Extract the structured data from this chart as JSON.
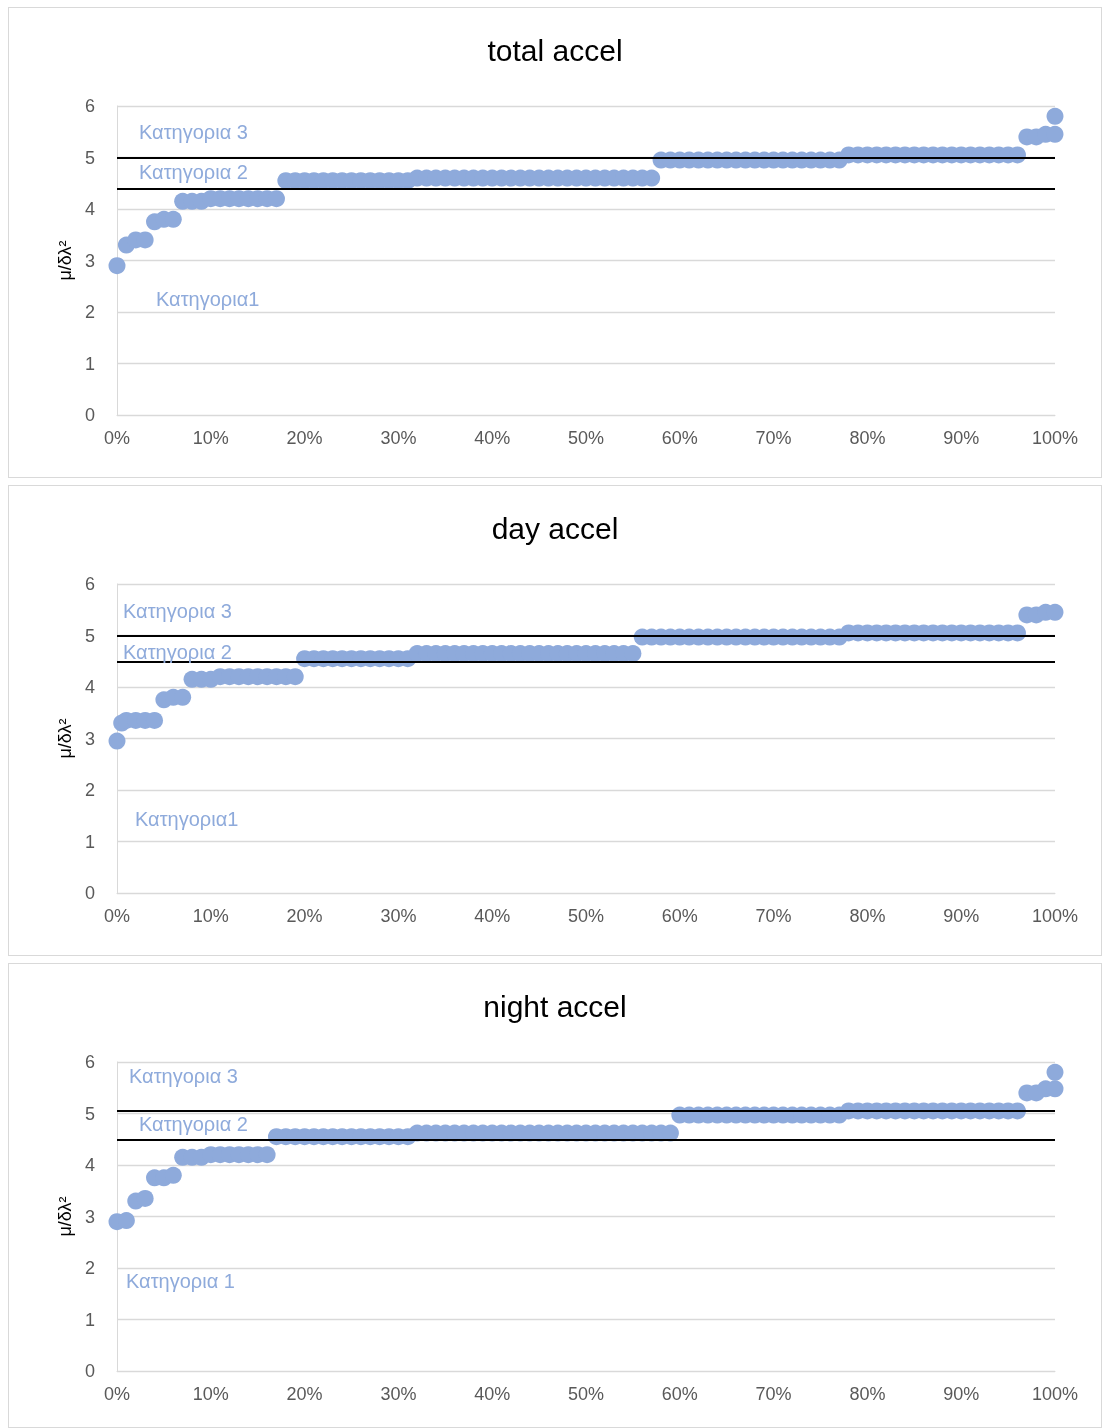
{
  "chart_data": [
    {
      "type": "scatter",
      "title": "total accel",
      "ylabel": "μ/δλ²",
      "marker": "circle",
      "grid": "y",
      "xlim": [
        0,
        100
      ],
      "xticks": [
        {
          "value": 0,
          "label": "0%"
        },
        {
          "value": 10,
          "label": "10%"
        },
        {
          "value": 20,
          "label": "20%"
        },
        {
          "value": 30,
          "label": "30%"
        },
        {
          "value": 40,
          "label": "40%"
        },
        {
          "value": 50,
          "label": "50%"
        },
        {
          "value": 60,
          "label": "60%"
        },
        {
          "value": 70,
          "label": "70%"
        },
        {
          "value": 80,
          "label": "80%"
        },
        {
          "value": 90,
          "label": "90%"
        },
        {
          "value": 100,
          "label": "100%"
        }
      ],
      "ylim": [
        0,
        6
      ],
      "yticks": [
        0,
        1,
        2,
        3,
        4,
        5,
        6
      ],
      "series": [
        {
          "color": "#8eaadb",
          "x": [
            0,
            1,
            2,
            3,
            4,
            5,
            6,
            7,
            8,
            9,
            10,
            11,
            12,
            13,
            14,
            15,
            16,
            17,
            18,
            19,
            20,
            21,
            22,
            23,
            24,
            25,
            26,
            27,
            28,
            29,
            30,
            31,
            32,
            33,
            34,
            35,
            36,
            37,
            38,
            39,
            40,
            41,
            42,
            43,
            44,
            45,
            46,
            47,
            48,
            49,
            50,
            51,
            52,
            53,
            54,
            55,
            56,
            57,
            58,
            59,
            60,
            61,
            62,
            63,
            64,
            65,
            66,
            67,
            68,
            69,
            70,
            71,
            72,
            73,
            74,
            75,
            76,
            77,
            78,
            79,
            80,
            81,
            82,
            83,
            84,
            85,
            86,
            87,
            88,
            89,
            90,
            91,
            92,
            93,
            94,
            95,
            96,
            97,
            98,
            99,
            100,
            100
          ],
          "values": [
            2.9,
            3.3,
            3.4,
            3.4,
            3.75,
            3.8,
            3.8,
            4.15,
            4.15,
            4.15,
            4.2,
            4.2,
            4.2,
            4.2,
            4.2,
            4.2,
            4.2,
            4.2,
            4.55,
            4.55,
            4.55,
            4.55,
            4.55,
            4.55,
            4.55,
            4.55,
            4.55,
            4.55,
            4.55,
            4.55,
            4.55,
            4.55,
            4.6,
            4.6,
            4.6,
            4.6,
            4.6,
            4.6,
            4.6,
            4.6,
            4.6,
            4.6,
            4.6,
            4.6,
            4.6,
            4.6,
            4.6,
            4.6,
            4.6,
            4.6,
            4.6,
            4.6,
            4.6,
            4.6,
            4.6,
            4.6,
            4.6,
            4.6,
            4.95,
            4.95,
            4.95,
            4.95,
            4.95,
            4.95,
            4.95,
            4.95,
            4.95,
            4.95,
            4.95,
            4.95,
            4.95,
            4.95,
            4.95,
            4.95,
            4.95,
            4.95,
            4.95,
            4.95,
            5.05,
            5.05,
            5.05,
            5.05,
            5.05,
            5.05,
            5.05,
            5.05,
            5.05,
            5.05,
            5.05,
            5.05,
            5.05,
            5.05,
            5.05,
            5.05,
            5.05,
            5.05,
            5.05,
            5.4,
            5.4,
            5.45,
            5.45,
            5.8
          ]
        }
      ],
      "ref_lines": [
        {
          "axis": "y",
          "value": 5.0,
          "color": "#000000"
        },
        {
          "axis": "y",
          "value": 4.4,
          "color": "#000000"
        }
      ],
      "annotations": [
        "Κατηγορια 3",
        "Κατηγορια 2",
        "Κατηγορια1"
      ]
    },
    {
      "type": "scatter",
      "title": "day accel",
      "ylabel": "μ/δλ²",
      "marker": "circle",
      "grid": "y",
      "xlim": [
        0,
        100
      ],
      "xticks": [
        {
          "value": 0,
          "label": "0%"
        },
        {
          "value": 10,
          "label": "10%"
        },
        {
          "value": 20,
          "label": "20%"
        },
        {
          "value": 30,
          "label": "30%"
        },
        {
          "value": 40,
          "label": "40%"
        },
        {
          "value": 50,
          "label": "50%"
        },
        {
          "value": 60,
          "label": "60%"
        },
        {
          "value": 70,
          "label": "70%"
        },
        {
          "value": 80,
          "label": "80%"
        },
        {
          "value": 90,
          "label": "90%"
        },
        {
          "value": 100,
          "label": "100%"
        }
      ],
      "ylim": [
        0,
        6
      ],
      "yticks": [
        0,
        1,
        2,
        3,
        4,
        5,
        6
      ],
      "series": [
        {
          "color": "#8eaadb",
          "x": [
            0,
            0.5,
            1,
            2,
            3,
            4,
            5,
            6,
            7,
            8,
            9,
            10,
            11,
            12,
            13,
            14,
            15,
            16,
            17,
            18,
            19,
            20,
            21,
            22,
            23,
            24,
            25,
            26,
            27,
            28,
            29,
            30,
            31,
            32,
            33,
            34,
            35,
            36,
            37,
            38,
            39,
            40,
            41,
            42,
            43,
            44,
            45,
            46,
            47,
            48,
            49,
            50,
            51,
            52,
            53,
            54,
            55,
            56,
            57,
            58,
            59,
            60,
            61,
            62,
            63,
            64,
            65,
            66,
            67,
            68,
            69,
            70,
            71,
            72,
            73,
            74,
            75,
            76,
            77,
            78,
            79,
            80,
            81,
            82,
            83,
            84,
            85,
            86,
            87,
            88,
            89,
            90,
            91,
            92,
            93,
            94,
            95,
            96,
            97,
            98,
            99,
            100
          ],
          "values": [
            2.95,
            3.3,
            3.35,
            3.35,
            3.35,
            3.35,
            3.75,
            3.8,
            3.8,
            4.15,
            4.15,
            4.15,
            4.2,
            4.2,
            4.2,
            4.2,
            4.2,
            4.2,
            4.2,
            4.2,
            4.2,
            4.55,
            4.55,
            4.55,
            4.55,
            4.55,
            4.55,
            4.55,
            4.55,
            4.55,
            4.55,
            4.55,
            4.55,
            4.65,
            4.65,
            4.65,
            4.65,
            4.65,
            4.65,
            4.65,
            4.65,
            4.65,
            4.65,
            4.65,
            4.65,
            4.65,
            4.65,
            4.65,
            4.65,
            4.65,
            4.65,
            4.65,
            4.65,
            4.65,
            4.65,
            4.65,
            4.65,
            4.97,
            4.97,
            4.97,
            4.97,
            4.97,
            4.97,
            4.97,
            4.97,
            4.97,
            4.97,
            4.97,
            4.97,
            4.97,
            4.97,
            4.97,
            4.97,
            4.97,
            4.97,
            4.97,
            4.97,
            4.97,
            4.97,
            5.05,
            5.05,
            5.05,
            5.05,
            5.05,
            5.05,
            5.05,
            5.05,
            5.05,
            5.05,
            5.05,
            5.05,
            5.05,
            5.05,
            5.05,
            5.05,
            5.05,
            5.05,
            5.05,
            5.4,
            5.4,
            5.45,
            5.45
          ]
        }
      ],
      "ref_lines": [
        {
          "axis": "y",
          "value": 5.0,
          "color": "#000000"
        },
        {
          "axis": "y",
          "value": 4.5,
          "color": "#000000"
        }
      ],
      "annotations": [
        "Κατηγορια 3",
        "Κατηγορια 2",
        "Κατηγορια1"
      ]
    },
    {
      "type": "scatter",
      "title": "night accel",
      "ylabel": "μ/δλ²",
      "marker": "circle",
      "grid": "y",
      "xlim": [
        0,
        100
      ],
      "xticks": [
        {
          "value": 0,
          "label": "0%"
        },
        {
          "value": 10,
          "label": "10%"
        },
        {
          "value": 20,
          "label": "20%"
        },
        {
          "value": 30,
          "label": "30%"
        },
        {
          "value": 40,
          "label": "40%"
        },
        {
          "value": 50,
          "label": "50%"
        },
        {
          "value": 60,
          "label": "60%"
        },
        {
          "value": 70,
          "label": "70%"
        },
        {
          "value": 80,
          "label": "80%"
        },
        {
          "value": 90,
          "label": "90%"
        },
        {
          "value": 100,
          "label": "100%"
        }
      ],
      "ylim": [
        0,
        6
      ],
      "yticks": [
        0,
        1,
        2,
        3,
        4,
        5,
        6
      ],
      "series": [
        {
          "color": "#8eaadb",
          "x": [
            0,
            1,
            2,
            3,
            4,
            5,
            6,
            7,
            8,
            9,
            10,
            11,
            12,
            13,
            14,
            15,
            16,
            17,
            18,
            19,
            20,
            21,
            22,
            23,
            24,
            25,
            26,
            27,
            28,
            29,
            30,
            31,
            32,
            33,
            34,
            35,
            36,
            37,
            38,
            39,
            40,
            41,
            42,
            43,
            44,
            45,
            46,
            47,
            48,
            49,
            50,
            51,
            52,
            53,
            54,
            55,
            56,
            57,
            58,
            59,
            60,
            61,
            62,
            63,
            64,
            65,
            66,
            67,
            68,
            69,
            70,
            71,
            72,
            73,
            74,
            75,
            76,
            77,
            78,
            79,
            80,
            81,
            82,
            83,
            84,
            85,
            86,
            87,
            88,
            89,
            90,
            91,
            92,
            93,
            94,
            95,
            96,
            97,
            98,
            99,
            100,
            100
          ],
          "values": [
            2.9,
            2.92,
            3.3,
            3.35,
            3.75,
            3.75,
            3.8,
            4.15,
            4.15,
            4.15,
            4.2,
            4.2,
            4.2,
            4.2,
            4.2,
            4.2,
            4.2,
            4.55,
            4.55,
            4.55,
            4.55,
            4.55,
            4.55,
            4.55,
            4.55,
            4.55,
            4.55,
            4.55,
            4.55,
            4.55,
            4.55,
            4.55,
            4.62,
            4.62,
            4.62,
            4.62,
            4.62,
            4.62,
            4.62,
            4.62,
            4.62,
            4.62,
            4.62,
            4.62,
            4.62,
            4.62,
            4.62,
            4.62,
            4.62,
            4.62,
            4.62,
            4.62,
            4.62,
            4.62,
            4.62,
            4.62,
            4.62,
            4.62,
            4.62,
            4.62,
            4.97,
            4.97,
            4.97,
            4.97,
            4.97,
            4.97,
            4.97,
            4.97,
            4.97,
            4.97,
            4.97,
            4.97,
            4.97,
            4.97,
            4.97,
            4.97,
            4.97,
            4.97,
            5.05,
            5.05,
            5.05,
            5.05,
            5.05,
            5.05,
            5.05,
            5.05,
            5.05,
            5.05,
            5.05,
            5.05,
            5.05,
            5.05,
            5.05,
            5.05,
            5.05,
            5.05,
            5.05,
            5.4,
            5.4,
            5.48,
            5.48,
            5.8
          ]
        }
      ],
      "ref_lines": [
        {
          "axis": "y",
          "value": 5.05,
          "color": "#000000"
        },
        {
          "axis": "y",
          "value": 4.5,
          "color": "#000000"
        }
      ],
      "annotations": [
        "Κατηγορια 3",
        "Κατηγορια 2",
        "Κατηγορια 1"
      ]
    }
  ]
}
